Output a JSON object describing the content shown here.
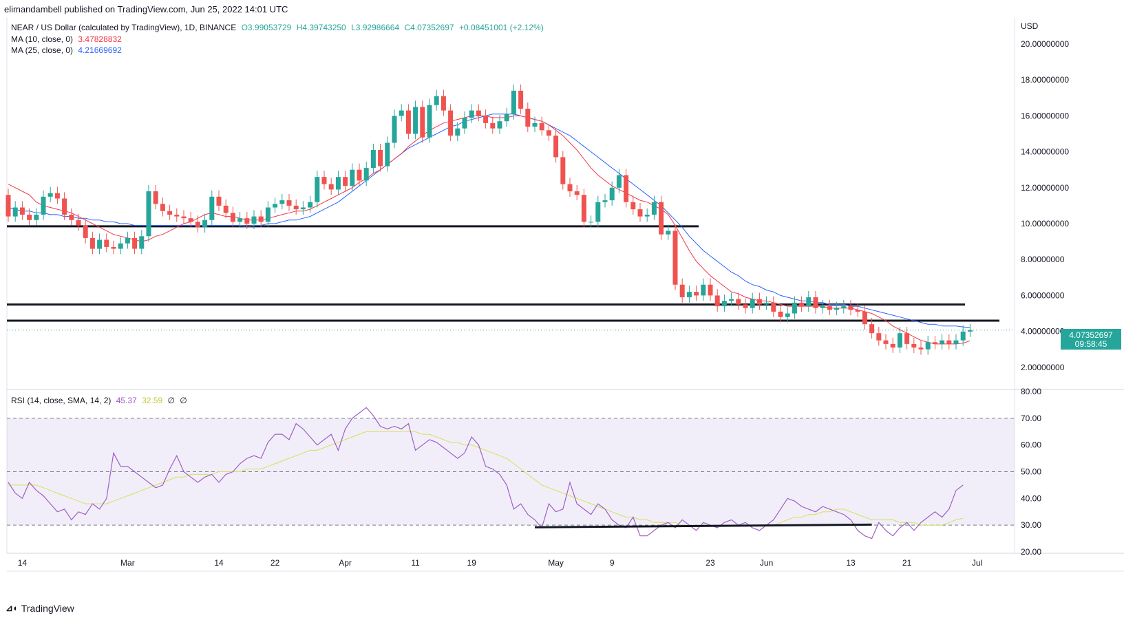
{
  "header": {
    "published": "elimandambell published on TradingView.com, Jun 25, 2022 14:01 UTC"
  },
  "legend": {
    "symbol": "NEAR / US Dollar (calculated by TradingView), 1D, BINANCE",
    "open": "O3.99053729",
    "high": "H4.39743250",
    "low": "L3.92986664",
    "close": "C4.07352697",
    "change": "+0.08451001 (+2.12%)",
    "ma10_label": "MA (10, close, 0)",
    "ma10_value": "3.47828832",
    "ma25_label": "MA (25, close, 0)",
    "ma25_value": "4.21669692",
    "rsi_label": "RSI (14, close, SMA, 14, 2)",
    "rsi_value": "45.37",
    "rsi_sma_value": "32.59",
    "rsi_extra1": "∅",
    "rsi_extra2": "∅"
  },
  "price_axis": {
    "currency": "USD",
    "ticks": [
      "20.00000000",
      "18.00000000",
      "16.00000000",
      "14.00000000",
      "12.00000000",
      "10.00000000",
      "8.00000000",
      "6.00000000",
      "4.00000000",
      "2.00000000"
    ],
    "last_price": "4.07352697",
    "countdown": "09:58:45"
  },
  "rsi_axis": {
    "ticks": [
      "80.00",
      "70.00",
      "60.00",
      "50.00",
      "40.00",
      "30.00",
      "20.00"
    ]
  },
  "time_axis": {
    "ticks": [
      "14",
      "Mar",
      "14",
      "22",
      "Apr",
      "11",
      "19",
      "May",
      "9",
      "23",
      "Jun",
      "13",
      "21",
      "Jul"
    ]
  },
  "branding": {
    "name": "TradingView"
  },
  "colors": {
    "up": "#26a69a",
    "down": "#ef5350",
    "ma10": "#f23645",
    "ma25": "#2962ff",
    "rsi": "#9c5fc4",
    "rsi_sma": "#d4e157",
    "rsi_band": "#7e57c2"
  },
  "chart_data": {
    "type": "candlestick",
    "title": "NEAR / US Dollar (calculated by TradingView), 1D, BINANCE",
    "ylabel": "USD",
    "ylim": [
      1,
      21
    ],
    "candles": [
      [
        11.6,
        10.4
      ],
      [
        10.4,
        10.9
      ],
      [
        10.9,
        10.5
      ],
      [
        10.5,
        10.2
      ],
      [
        10.2,
        10.5
      ],
      [
        10.5,
        11.5
      ],
      [
        11.5,
        11.7
      ],
      [
        11.7,
        11.4
      ],
      [
        11.4,
        10.5
      ],
      [
        10.5,
        10.2
      ],
      [
        10.2,
        9.9
      ],
      [
        9.9,
        9.2
      ],
      [
        9.2,
        8.6
      ],
      [
        8.6,
        9.1
      ],
      [
        9.1,
        8.7
      ],
      [
        8.7,
        8.6
      ],
      [
        8.6,
        8.9
      ],
      [
        8.9,
        9.2
      ],
      [
        9.2,
        8.6
      ],
      [
        8.6,
        9.3
      ],
      [
        9.3,
        11.8
      ],
      [
        11.8,
        11.1
      ],
      [
        11.1,
        10.7
      ],
      [
        10.7,
        10.5
      ],
      [
        10.5,
        10.4
      ],
      [
        10.4,
        10.3
      ],
      [
        10.3,
        10.1
      ],
      [
        10.1,
        9.8
      ],
      [
        9.8,
        10.2
      ],
      [
        10.2,
        11.5
      ],
      [
        11.5,
        11.0
      ],
      [
        11.0,
        10.6
      ],
      [
        10.6,
        10.1
      ],
      [
        10.1,
        10.3
      ],
      [
        10.3,
        10.0
      ],
      [
        10.0,
        10.4
      ],
      [
        10.4,
        10.1
      ],
      [
        10.1,
        10.9
      ],
      [
        10.9,
        11.1
      ],
      [
        11.1,
        11.3
      ],
      [
        11.3,
        11.0
      ],
      [
        11.0,
        10.8
      ],
      [
        10.8,
        10.9
      ],
      [
        10.9,
        11.2
      ],
      [
        11.2,
        12.6
      ],
      [
        12.6,
        12.2
      ],
      [
        12.2,
        11.9
      ],
      [
        11.9,
        12.6
      ],
      [
        12.6,
        12.1
      ],
      [
        12.1,
        13.0
      ],
      [
        13.0,
        12.4
      ],
      [
        12.4,
        13.1
      ],
      [
        13.1,
        14.1
      ],
      [
        14.1,
        13.2
      ],
      [
        13.2,
        14.5
      ],
      [
        14.5,
        16.0
      ],
      [
        16.0,
        16.3
      ],
      [
        16.3,
        15.0
      ],
      [
        15.0,
        16.5
      ],
      [
        16.5,
        14.8
      ],
      [
        14.8,
        16.6
      ],
      [
        16.6,
        17.1
      ],
      [
        17.1,
        16.3
      ],
      [
        16.3,
        14.9
      ],
      [
        14.9,
        15.3
      ],
      [
        15.3,
        15.9
      ],
      [
        15.9,
        16.3
      ],
      [
        16.3,
        16.0
      ],
      [
        16.0,
        15.6
      ],
      [
        15.6,
        15.3
      ],
      [
        15.3,
        15.7
      ],
      [
        15.7,
        16.1
      ],
      [
        16.1,
        17.4
      ],
      [
        17.4,
        16.4
      ],
      [
        16.4,
        15.4
      ],
      [
        15.4,
        15.6
      ],
      [
        15.6,
        15.2
      ],
      [
        15.2,
        14.9
      ],
      [
        14.9,
        13.7
      ],
      [
        13.7,
        12.2
      ],
      [
        12.2,
        11.8
      ],
      [
        11.8,
        11.6
      ],
      [
        11.6,
        10.1
      ],
      [
        10.1,
        10.1
      ],
      [
        10.1,
        11.2
      ],
      [
        11.2,
        11.3
      ],
      [
        11.3,
        12.0
      ],
      [
        12.0,
        12.7
      ],
      [
        12.7,
        11.2
      ],
      [
        11.2,
        10.8
      ],
      [
        10.8,
        10.4
      ],
      [
        10.4,
        10.5
      ],
      [
        10.5,
        11.2
      ],
      [
        11.2,
        9.4
      ],
      [
        9.4,
        9.6
      ],
      [
        9.6,
        6.6
      ],
      [
        6.6,
        5.9
      ],
      [
        5.9,
        6.2
      ],
      [
        6.2,
        6.0
      ],
      [
        6.0,
        6.6
      ],
      [
        6.6,
        6.0
      ],
      [
        6.0,
        5.4
      ],
      [
        5.4,
        5.7
      ],
      [
        5.7,
        5.8
      ],
      [
        5.8,
        5.5
      ],
      [
        5.5,
        5.3
      ],
      [
        5.3,
        5.8
      ],
      [
        5.8,
        5.5
      ],
      [
        5.5,
        5.6
      ],
      [
        5.6,
        5.1
      ],
      [
        5.1,
        4.8
      ],
      [
        4.8,
        5.0
      ],
      [
        5.0,
        5.6
      ],
      [
        5.6,
        5.4
      ],
      [
        5.4,
        5.9
      ],
      [
        5.9,
        5.3
      ],
      [
        5.3,
        5.4
      ],
      [
        5.4,
        5.2
      ],
      [
        5.2,
        5.3
      ],
      [
        5.3,
        5.4
      ],
      [
        5.4,
        5.2
      ],
      [
        5.2,
        5.1
      ],
      [
        5.1,
        4.4
      ],
      [
        4.4,
        3.9
      ],
      [
        3.9,
        3.5
      ],
      [
        3.5,
        3.3
      ],
      [
        3.3,
        3.1
      ],
      [
        3.1,
        3.9
      ],
      [
        3.9,
        3.3
      ],
      [
        3.3,
        3.1
      ],
      [
        3.1,
        3.0
      ],
      [
        3.0,
        3.4
      ],
      [
        3.4,
        3.3
      ],
      [
        3.3,
        3.5
      ],
      [
        3.5,
        3.3
      ],
      [
        3.3,
        3.5
      ],
      [
        3.5,
        3.99
      ],
      [
        3.99,
        4.07
      ]
    ],
    "ma10": [
      12.2,
      12.0,
      11.8,
      11.6,
      11.2,
      11.0,
      10.9,
      10.8,
      10.7,
      10.6,
      10.4,
      10.2,
      10.0,
      9.8,
      9.6,
      9.4,
      9.3,
      9.2,
      9.1,
      9.0,
      9.1,
      9.3,
      9.4,
      9.6,
      9.8,
      10.0,
      10.1,
      10.3,
      10.5,
      10.6,
      10.5,
      10.4,
      10.4,
      10.3,
      10.2,
      10.2,
      10.2,
      10.3,
      10.4,
      10.5,
      10.6,
      10.7,
      10.7,
      10.8,
      11.0,
      11.2,
      11.4,
      11.6,
      11.8,
      12.0,
      12.3,
      12.5,
      12.8,
      13.0,
      13.3,
      13.6,
      13.9,
      14.3,
      14.6,
      14.9,
      15.2,
      15.4,
      15.6,
      15.7,
      15.8,
      15.9,
      16.0,
      16.0,
      16.0,
      15.9,
      15.9,
      15.9,
      16.0,
      16.0,
      15.9,
      15.8,
      15.7,
      15.5,
      15.2,
      14.9,
      14.5,
      14.1,
      13.6,
      13.1,
      12.7,
      12.4,
      12.1,
      11.9,
      11.7,
      11.5,
      11.3,
      11.2,
      11.0,
      10.8,
      10.5,
      9.9,
      9.2,
      8.5,
      7.9,
      7.5,
      7.1,
      6.8,
      6.5,
      6.2,
      6.1,
      5.9,
      5.8,
      5.7,
      5.7,
      5.6,
      5.5,
      5.4,
      5.4,
      5.4,
      5.4,
      5.4,
      5.4,
      5.3,
      5.3,
      5.3,
      5.3,
      5.2,
      5.1,
      5.0,
      4.8,
      4.6,
      4.3,
      4.1,
      3.9,
      3.7,
      3.5,
      3.4,
      3.3,
      3.3,
      3.3,
      3.3,
      3.35,
      3.48
    ],
    "ma25": [
      10.9,
      10.8,
      10.7,
      10.7,
      10.6,
      10.6,
      10.5,
      10.5,
      10.4,
      10.4,
      10.3,
      10.3,
      10.2,
      10.2,
      10.1,
      10.1,
      10.0,
      10.0,
      9.9,
      9.9,
      9.9,
      9.9,
      9.9,
      9.9,
      9.9,
      9.9,
      9.9,
      9.9,
      9.9,
      9.9,
      9.9,
      9.9,
      9.9,
      9.9,
      9.8,
      9.9,
      9.9,
      10.0,
      10.0,
      10.1,
      10.2,
      10.2,
      10.3,
      10.4,
      10.6,
      10.8,
      11.0,
      11.2,
      11.5,
      11.8,
      12.1,
      12.4,
      12.7,
      13.0,
      13.3,
      13.6,
      13.9,
      14.2,
      14.4,
      14.6,
      14.8,
      15.0,
      15.2,
      15.4,
      15.5,
      15.7,
      15.8,
      15.9,
      16.0,
      16.1,
      16.1,
      16.1,
      16.1,
      16.0,
      15.9,
      15.8,
      15.7,
      15.5,
      15.3,
      15.1,
      14.9,
      14.6,
      14.3,
      14.0,
      13.7,
      13.4,
      13.1,
      12.8,
      12.5,
      12.2,
      11.9,
      11.6,
      11.3,
      11.0,
      10.6,
      10.2,
      9.8,
      9.3,
      8.9,
      8.5,
      8.2,
      7.9,
      7.6,
      7.3,
      7.1,
      6.8,
      6.6,
      6.5,
      6.3,
      6.2,
      6.0,
      5.9,
      5.8,
      5.7,
      5.7,
      5.6,
      5.6,
      5.5,
      5.5,
      5.5,
      5.4,
      5.4,
      5.3,
      5.2,
      5.1,
      5.0,
      4.9,
      4.8,
      4.7,
      4.6,
      4.5,
      4.4,
      4.4,
      4.3,
      4.3,
      4.3,
      4.25,
      4.22
    ],
    "rsi": [
      46,
      42,
      40,
      46,
      43,
      41,
      38,
      35,
      36,
      32,
      35,
      34,
      38,
      36,
      40,
      57,
      52,
      52,
      50,
      48,
      46,
      44,
      45,
      51,
      56,
      50,
      48,
      46,
      48,
      49,
      46,
      49,
      50,
      53,
      55,
      56,
      55,
      61,
      64,
      64,
      62,
      68,
      66,
      63,
      60,
      62,
      64,
      58,
      66,
      70,
      72,
      74,
      71,
      67,
      66,
      67,
      66,
      68,
      58,
      60,
      62,
      61,
      59,
      57,
      55,
      57,
      63,
      60,
      52,
      51,
      49,
      45,
      36,
      38,
      34,
      32,
      29,
      38,
      35,
      36,
      46,
      38,
      36,
      34,
      38,
      36,
      32,
      30,
      29,
      33,
      26,
      26,
      28,
      30,
      31,
      29,
      32,
      30,
      28,
      31,
      30,
      29,
      31,
      32,
      30,
      31,
      29,
      28,
      30,
      32,
      36,
      40,
      39,
      37,
      36,
      35,
      37,
      36,
      35,
      34,
      32,
      28,
      26,
      25,
      31,
      28,
      26,
      29,
      31,
      28,
      31,
      33,
      35,
      33,
      36,
      43,
      45
    ],
    "rsi_sma": [
      45,
      45,
      45,
      45,
      45,
      44,
      43,
      42,
      41,
      40,
      39,
      38,
      38,
      38,
      38,
      39,
      40,
      41,
      42,
      43,
      44,
      45,
      46,
      47,
      48,
      48,
      49,
      49,
      49,
      49,
      50,
      50,
      50,
      50,
      51,
      51,
      51,
      52,
      53,
      54,
      55,
      56,
      57,
      58,
      58,
      59,
      60,
      61,
      62,
      63,
      64,
      65,
      65,
      65,
      65,
      65,
      65,
      65,
      65,
      64,
      64,
      63,
      62,
      61,
      61,
      60,
      60,
      59,
      58,
      57,
      56,
      55,
      53,
      51,
      49,
      47,
      45,
      44,
      43,
      42,
      41,
      40,
      39,
      38,
      37,
      36,
      35,
      34,
      33,
      33,
      32,
      32,
      31,
      31,
      31,
      31,
      30,
      30,
      30,
      30,
      30,
      30,
      30,
      30,
      30,
      30,
      30,
      30,
      30,
      30,
      31,
      32,
      33,
      33,
      34,
      34,
      35,
      35,
      36,
      36,
      35,
      34,
      33,
      32,
      32,
      32,
      32,
      31,
      31,
      31,
      30,
      30,
      30,
      30,
      31,
      32,
      32.59
    ],
    "support_lines": [
      9.85,
      5.5,
      4.6
    ],
    "rsi_trendline": [
      [
        75,
        29.2
      ],
      [
        123,
        30.2
      ]
    ],
    "rsi_levels": [
      70,
      50,
      30
    ],
    "rsi_ylim": [
      20,
      80
    ]
  }
}
